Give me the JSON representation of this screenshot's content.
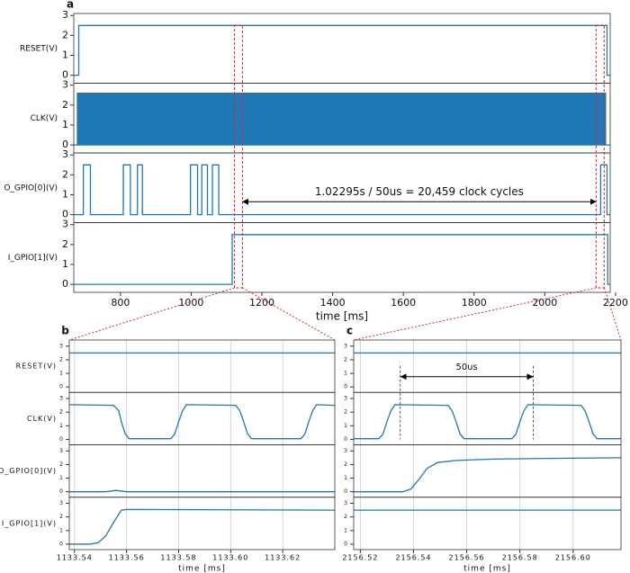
{
  "chart_data": [
    {
      "type": "line",
      "label": "a",
      "xlabel": "time [ms]",
      "xlim": [
        668,
        2185
      ],
      "xticks": [
        800,
        1000,
        1200,
        1400,
        1600,
        1800,
        2000,
        2200
      ],
      "grid": false,
      "subplots": [
        {
          "ylabel": "RESET(V)",
          "ylim": [
            -0.4,
            3.1
          ],
          "yticks": [
            0,
            1,
            2,
            3
          ],
          "series": [
            {
              "color": "#1f77b4",
              "x": [
                668,
                682,
                682,
                2176,
                2176,
                2185
              ],
              "values": [
                0,
                0,
                2.5,
                2.5,
                0,
                0
              ]
            }
          ]
        },
        {
          "ylabel": "CLK(V)",
          "ylim": [
            -0.4,
            3.1
          ],
          "yticks": [
            0,
            1,
            2,
            3
          ],
          "series": [
            {
              "color": "#1f77b4",
              "fill": true,
              "x": [
                668,
                678,
                678,
                2172,
                2172,
                2185
              ],
              "values": [
                0,
                0,
                2.6,
                2.6,
                0,
                0
              ]
            }
          ]
        },
        {
          "ylabel": "O_GPIO[0](V)",
          "ylim": [
            -0.4,
            3.1
          ],
          "yticks": [
            0,
            1,
            2,
            3
          ],
          "annotation": {
            "text": "1.02295s / 50us = 20,459 clock cycles"
          },
          "series": [
            {
              "color": "#1f77b4",
              "x": [
                668,
                695,
                695,
                715,
                715,
                808,
                808,
                828,
                828,
                848,
                848,
                862,
                862,
                998,
                998,
                1018,
                1018,
                1030,
                1030,
                1046,
                1046,
                1060,
                1060,
                1078,
                1078,
                2158,
                2158,
                2176,
                2176,
                2185
              ],
              "values": [
                0,
                0,
                2.5,
                2.5,
                0,
                0,
                2.5,
                2.5,
                0,
                0,
                2.5,
                2.5,
                0,
                0,
                2.5,
                2.5,
                0,
                0,
                2.5,
                2.5,
                0,
                0,
                2.5,
                2.5,
                0,
                0,
                2.5,
                2.5,
                0,
                0
              ]
            }
          ]
        },
        {
          "ylabel": "I_GPIO[1](V)",
          "ylim": [
            -0.4,
            3.1
          ],
          "yticks": [
            0,
            1,
            2,
            3
          ],
          "series": [
            {
              "color": "#1f77b4",
              "x": [
                668,
                1116,
                1116,
                2178,
                2178,
                2185
              ],
              "values": [
                0,
                0,
                2.5,
                2.5,
                0,
                0
              ]
            }
          ]
        }
      ]
    },
    {
      "type": "line",
      "label": "b",
      "xlabel": "time [ms]",
      "xlim": [
        1133.538,
        1133.64
      ],
      "xticks": [
        {
          "value": 1133.54,
          "label": "1133.54"
        },
        {
          "value": 1133.56,
          "label": "1133.56"
        },
        {
          "value": 1133.58,
          "label": "1133.58"
        },
        {
          "value": 1133.6,
          "label": "1133.60"
        },
        {
          "value": 1133.62,
          "label": "1133.62"
        }
      ],
      "grid": true,
      "subplots": [
        {
          "ylabel": "RESET(V)",
          "ylim": [
            -0.4,
            3.45
          ],
          "yticks": [
            0,
            1,
            2,
            3
          ],
          "series": [
            {
              "color": "#1f77b4",
              "x": [
                1133.538,
                1133.64
              ],
              "values": [
                2.5,
                2.5
              ]
            }
          ]
        },
        {
          "ylabel": "CLK(V)",
          "ylim": [
            -0.4,
            3.45
          ],
          "yticks": [
            0,
            1,
            2,
            3
          ],
          "series": [
            {
              "color": "#1f77b4",
              "x": [
                1133.538,
                1133.555,
                1133.557,
                1133.558,
                1133.5595,
                1133.561,
                1133.577,
                1133.5785,
                1133.58,
                1133.5815,
                1133.583,
                1133.602,
                1133.6035,
                1133.605,
                1133.6065,
                1133.608,
                1133.627,
                1133.6285,
                1133.63,
                1133.6315,
                1133.633,
                1133.64
              ],
              "values": [
                2.55,
                2.5,
                2.1,
                1.3,
                0.4,
                0.05,
                0.05,
                0.4,
                1.3,
                2.1,
                2.55,
                2.5,
                2.1,
                1.3,
                0.4,
                0.05,
                0.05,
                0.4,
                1.3,
                2.1,
                2.55,
                2.5
              ]
            }
          ]
        },
        {
          "ylabel": "O_GPIO[0](V)",
          "ylim": [
            -0.4,
            3.45
          ],
          "yticks": [
            0,
            1,
            2,
            3
          ],
          "series": [
            {
              "color": "#1f77b4",
              "x": [
                1133.538,
                1133.552,
                1133.556,
                1133.56,
                1133.64
              ],
              "values": [
                0,
                0,
                0.1,
                0,
                0
              ]
            }
          ]
        },
        {
          "ylabel": "I_GPIO[1](V)",
          "ylim": [
            -0.4,
            3.45
          ],
          "yticks": [
            0,
            1,
            2,
            3
          ],
          "series": [
            {
              "color": "#1f77b4",
              "x": [
                1133.538,
                1133.546,
                1133.549,
                1133.552,
                1133.555,
                1133.558,
                1133.56,
                1133.64
              ],
              "values": [
                0,
                0,
                0.1,
                0.6,
                1.6,
                2.5,
                2.55,
                2.5
              ]
            }
          ]
        }
      ]
    },
    {
      "type": "line",
      "label": "c",
      "xlabel": "time [ms]",
      "xlim": [
        2156.5175,
        2156.618
      ],
      "xticks": [
        {
          "value": 2156.52,
          "label": "2156.52"
        },
        {
          "value": 2156.54,
          "label": "2156.54"
        },
        {
          "value": 2156.56,
          "label": "2156.56"
        },
        {
          "value": 2156.58,
          "label": "2156.58"
        },
        {
          "value": 2156.6,
          "label": "2156.60"
        }
      ],
      "grid": true,
      "subplots": [
        {
          "ylim": [
            -0.4,
            3.45
          ],
          "yticks": [
            0,
            1,
            2,
            3
          ],
          "annotation": {
            "text": "50us",
            "span": [
              2156.535,
              2156.585
            ]
          },
          "series": [
            {
              "color": "#1f77b4",
              "x": [
                2156.5175,
                2156.618
              ],
              "values": [
                2.5,
                2.5
              ]
            }
          ]
        },
        {
          "ylim": [
            -0.4,
            3.45
          ],
          "yticks": [
            0,
            1,
            2,
            3
          ],
          "series": [
            {
              "color": "#1f77b4",
              "x": [
                2156.5175,
                2156.527,
                2156.5285,
                2156.53,
                2156.5315,
                2156.533,
                2156.553,
                2156.5545,
                2156.556,
                2156.5575,
                2156.559,
                2156.577,
                2156.5785,
                2156.58,
                2156.5815,
                2156.583,
                2156.603,
                2156.6045,
                2156.606,
                2156.6075,
                2156.609,
                2156.618
              ],
              "values": [
                0.05,
                0.05,
                0.4,
                1.3,
                2.1,
                2.55,
                2.5,
                2.1,
                1.3,
                0.4,
                0.05,
                0.05,
                0.4,
                1.3,
                2.1,
                2.55,
                2.5,
                2.1,
                1.3,
                0.4,
                0.05,
                0.05
              ]
            }
          ]
        },
        {
          "ylim": [
            -0.4,
            3.45
          ],
          "yticks": [
            0,
            1,
            2,
            3
          ],
          "series": [
            {
              "color": "#1f77b4",
              "x": [
                2156.5175,
                2156.536,
                2156.539,
                2156.542,
                2156.545,
                2156.549,
                2156.556,
                2156.57,
                2156.59,
                2156.618
              ],
              "values": [
                0,
                0,
                0.2,
                0.9,
                1.7,
                2.15,
                2.3,
                2.4,
                2.45,
                2.5
              ]
            }
          ]
        },
        {
          "ylim": [
            -0.4,
            3.45
          ],
          "yticks": [
            0,
            1,
            2,
            3
          ],
          "series": [
            {
              "color": "#1f77b4",
              "x": [
                2156.5175,
                2156.618
              ],
              "values": [
                2.5,
                2.5
              ]
            }
          ]
        }
      ]
    }
  ]
}
